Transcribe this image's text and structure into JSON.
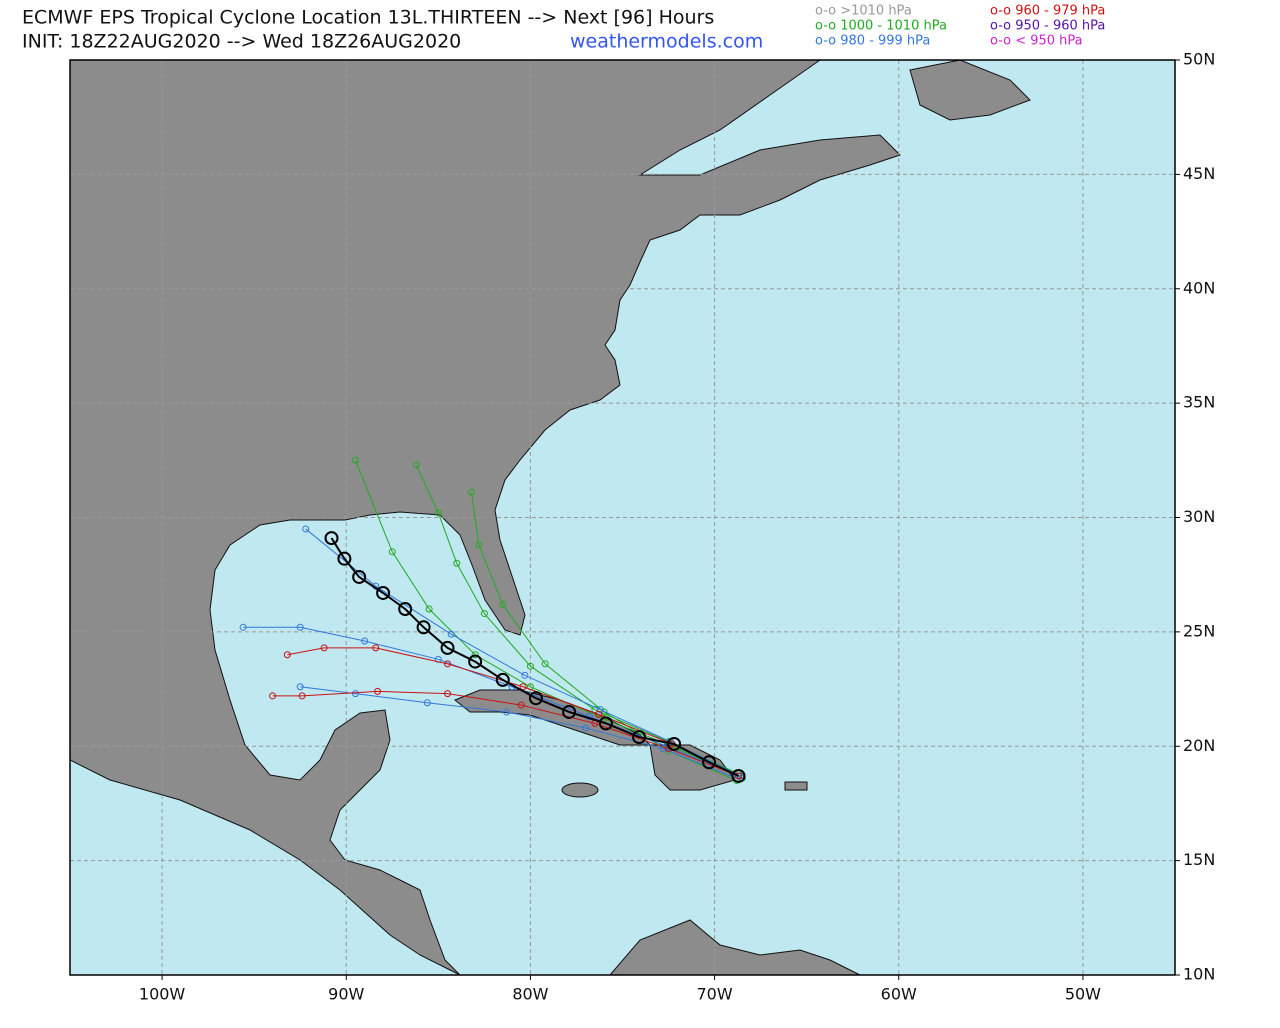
{
  "chart_data": {
    "type": "track-map",
    "title": "ECMWF EPS Tropical Cyclone Location 13L.THIRTEEN --> Next [96] Hours",
    "subtitle": "INIT: 18Z22AUG2020 --> Wed 18Z26AUG2020",
    "site": "weathermodels.com",
    "legend": [
      {
        "label": "o-o >1010 hPa",
        "color": "#999999"
      },
      {
        "label": "o-o 1000 - 1010 hPa",
        "color": "#22aa22"
      },
      {
        "label": "o-o 980 - 999 hPa",
        "color": "#3377dd"
      },
      {
        "label": "o-o 960 - 979 hPa",
        "color": "#cc1111"
      },
      {
        "label": "o-o 950 - 960 hPa",
        "color": "#5511aa"
      },
      {
        "label": "o-o < 950 hPa",
        "color": "#cc22cc"
      }
    ],
    "xlim": [
      -105,
      -45
    ],
    "ylim": [
      10,
      50
    ],
    "xticks": [
      {
        "value": -100,
        "label": "100W"
      },
      {
        "value": -90,
        "label": "90W"
      },
      {
        "value": -80,
        "label": "80W"
      },
      {
        "value": -70,
        "label": "70W"
      },
      {
        "value": -60,
        "label": "60W"
      },
      {
        "value": -50,
        "label": "50W"
      }
    ],
    "yticks": [
      {
        "value": 10,
        "label": "10N"
      },
      {
        "value": 15,
        "label": "15N"
      },
      {
        "value": 20,
        "label": "20N"
      },
      {
        "value": 25,
        "label": "25N"
      },
      {
        "value": 30,
        "label": "30N"
      },
      {
        "value": 35,
        "label": "35N"
      },
      {
        "value": 40,
        "label": "40N"
      },
      {
        "value": 45,
        "label": "45N"
      },
      {
        "value": 50,
        "label": "50N"
      }
    ],
    "grid": true,
    "members": [
      {
        "color": "#22aa22",
        "lon": [
          -68.5,
          -72,
          -76,
          -80,
          -83,
          -85.5,
          -87.5,
          -89.5
        ],
        "lat": [
          18.6,
          19.9,
          21.2,
          22.6,
          24.0,
          26.0,
          28.5,
          32.5
        ]
      },
      {
        "color": "#22aa22",
        "lon": [
          -68.7,
          -72.5,
          -76.5,
          -80,
          -82.5,
          -84,
          -85,
          -86.2
        ],
        "lat": [
          18.8,
          20.2,
          21.6,
          23.5,
          25.8,
          28.0,
          30.2,
          32.3
        ]
      },
      {
        "color": "#22aa22",
        "lon": [
          -68.8,
          -72.5,
          -76,
          -79.2,
          -81.5,
          -82.8,
          -83.2
        ],
        "lat": [
          18.5,
          19.8,
          21.5,
          23.6,
          26.2,
          28.8,
          31.1
        ]
      },
      {
        "color": "#3377dd",
        "lon": [
          -68.7,
          -72.6,
          -76.8,
          -81,
          -85,
          -89,
          -92.5,
          -95.6
        ],
        "lat": [
          18.7,
          20.0,
          21.3,
          22.6,
          23.8,
          24.6,
          25.2,
          25.2
        ]
      },
      {
        "color": "#3377dd",
        "lon": [
          -68.6,
          -72.4,
          -76.2,
          -80.3,
          -84.3,
          -88.4,
          -92.2
        ],
        "lat": [
          18.7,
          20.2,
          21.6,
          23.1,
          24.9,
          27.0,
          29.5
        ]
      },
      {
        "color": "#3377dd",
        "lon": [
          -68.8,
          -72.8,
          -77,
          -81.3,
          -85.6,
          -89.5,
          -92.5
        ],
        "lat": [
          18.6,
          19.9,
          20.8,
          21.5,
          21.9,
          22.3,
          22.6
        ]
      },
      {
        "color": "#cc1111",
        "lon": [
          -68.7,
          -72.3,
          -76.3,
          -80.4,
          -84.5,
          -88.4,
          -91.2,
          -93.2
        ],
        "lat": [
          18.7,
          20.1,
          21.4,
          22.6,
          23.6,
          24.3,
          24.3,
          24.0
        ]
      },
      {
        "color": "#cc1111",
        "lon": [
          -68.7,
          -72.5,
          -76.5,
          -80.5,
          -84.5,
          -88.3,
          -92.4,
          -94.0
        ],
        "lat": [
          18.7,
          19.9,
          21.0,
          21.8,
          22.3,
          22.4,
          22.2,
          22.2
        ]
      }
    ],
    "mean_track": {
      "color": "#000000",
      "lon": [
        -68.7,
        -70.3,
        -72.2,
        -74.1,
        -75.9,
        -77.9,
        -79.7,
        -81.5,
        -83.0,
        -84.5,
        -85.8,
        -86.8,
        -88.0,
        -89.3,
        -90.1,
        -90.8
      ],
      "lat": [
        18.7,
        19.3,
        20.1,
        20.4,
        21.0,
        21.5,
        22.1,
        22.9,
        23.7,
        24.3,
        25.2,
        26.0,
        26.7,
        27.4,
        28.2,
        29.1
      ]
    }
  }
}
